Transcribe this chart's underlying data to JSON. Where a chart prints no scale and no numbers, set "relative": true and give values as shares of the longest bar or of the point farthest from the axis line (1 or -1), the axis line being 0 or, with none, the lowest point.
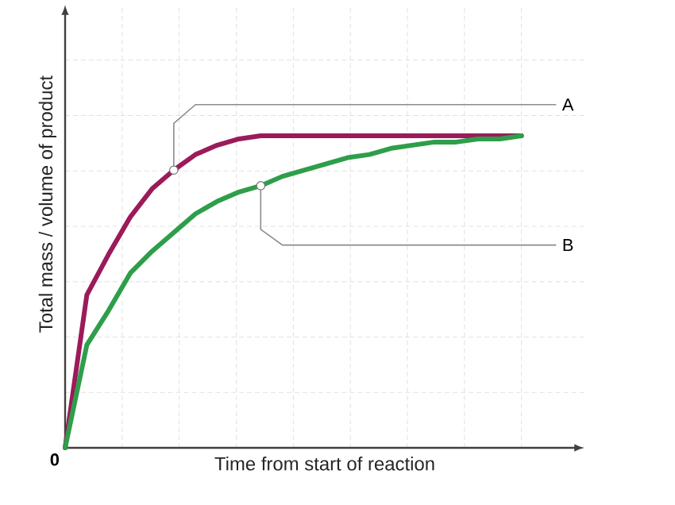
{
  "chart_data": {
    "type": "line",
    "xlabel": "Time from start of reaction",
    "ylabel": "Total mass / volume of product",
    "relative": true,
    "grid": true,
    "categories": [
      null,
      null,
      null,
      null,
      null,
      null,
      null,
      null,
      null,
      null,
      null,
      null,
      null,
      null,
      null,
      null,
      null,
      null,
      null,
      null,
      null,
      null
    ],
    "series": [
      {
        "name": "A",
        "color": "#9b1b5a",
        "values": [
          0,
          0.49,
          0.62,
          0.74,
          0.83,
          0.89,
          0.94,
          0.97,
          0.99,
          1,
          1,
          1,
          1,
          1,
          1,
          1,
          1,
          1,
          1,
          1,
          1,
          1
        ]
      },
      {
        "name": "B",
        "color": "#2e9e4a",
        "values": [
          0,
          0.33,
          0.44,
          0.56,
          0.63,
          0.69,
          0.75,
          0.79,
          0.82,
          0.84,
          0.87,
          0.89,
          0.91,
          0.93,
          0.94,
          0.96,
          0.97,
          0.98,
          0.98,
          0.99,
          0.99,
          1
        ]
      }
    ],
    "annotations": [
      "0"
    ]
  }
}
